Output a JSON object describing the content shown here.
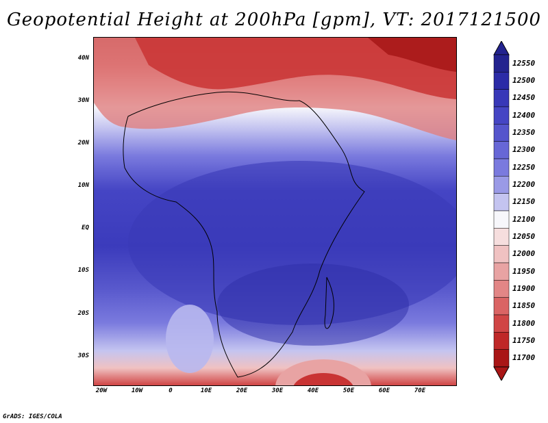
{
  "title": "Geopotential Height at 200hPa [gpm], VT: 2017121500",
  "credit": "GrADS: IGES/COLA",
  "lat_labels": [
    "40N",
    "30N",
    "20N",
    "10N",
    "EQ",
    "10S",
    "20S",
    "30S"
  ],
  "lon_labels": [
    "20W",
    "10W",
    "0",
    "10E",
    "20E",
    "30E",
    "40E",
    "50E",
    "60E",
    "70E"
  ],
  "colorbar": {
    "levels": [
      "12550",
      "12500",
      "12450",
      "12400",
      "12350",
      "12300",
      "12250",
      "12200",
      "12150",
      "12100",
      "12050",
      "12000",
      "11950",
      "11900",
      "11850",
      "11800",
      "11750",
      "11700"
    ],
    "colors": [
      "#23238f",
      "#2b2ba7",
      "#3838b8",
      "#4545c4",
      "#5555cc",
      "#6767d6",
      "#7a7ade",
      "#9a9ae6",
      "#c4c4f0",
      "#f7f7fb",
      "#f6dede",
      "#f0c2c2",
      "#e8a3a3",
      "#e28686",
      "#da6464",
      "#d04545",
      "#bf2828",
      "#a91616"
    ]
  },
  "map_extent": {
    "lon_min": -22,
    "lon_max": 80,
    "lat_min": -37,
    "lat_max": 45
  }
}
